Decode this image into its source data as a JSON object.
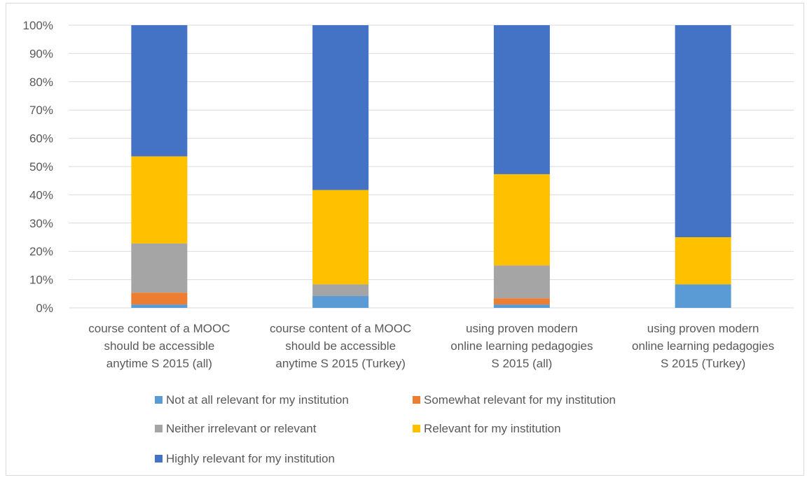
{
  "chart_data": {
    "type": "bar",
    "stacked": true,
    "percent_stacked": true,
    "categories": [
      [
        "course content of a MOOC",
        "should be accessible",
        "anytime S 2015 (all)"
      ],
      [
        "course content of a MOOC",
        "should be accessible",
        "anytime S 2015 (Turkey)"
      ],
      [
        "using proven modern",
        "online learning pedagogies",
        "S 2015 (all)"
      ],
      [
        "using proven modern",
        "online learning pedagogies",
        "S 2015 (Turkey)"
      ]
    ],
    "series": [
      {
        "name": "Not at all relevant for my institution",
        "color": "#5b9bd5",
        "values": [
          1.2,
          4.2,
          1.2,
          8.3
        ]
      },
      {
        "name": "Somewhat relevant for my institution",
        "color": "#ed7d31",
        "values": [
          4.2,
          0,
          2.2,
          0
        ]
      },
      {
        "name": "Neither irrelevant or relevant",
        "color": "#a5a5a5",
        "values": [
          17.4,
          4.1,
          11.6,
          0
        ]
      },
      {
        "name": "Relevant for my institution",
        "color": "#ffc000",
        "values": [
          30.8,
          33.4,
          32.3,
          16.7
        ]
      },
      {
        "name": "Highly relevant for my institution",
        "color": "#4472c4",
        "values": [
          46.4,
          58.3,
          52.7,
          75.0
        ]
      }
    ],
    "y_ticks": [
      "0%",
      "10%",
      "20%",
      "30%",
      "40%",
      "50%",
      "60%",
      "70%",
      "80%",
      "90%",
      "100%"
    ],
    "ylim": [
      0,
      100
    ],
    "grid": true,
    "legend_position": "bottom"
  }
}
